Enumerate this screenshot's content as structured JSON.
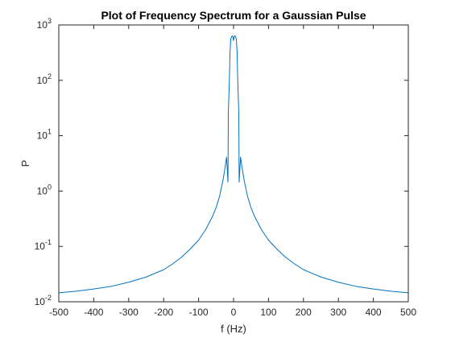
{
  "chart_data": {
    "type": "line",
    "title": "Plot of Frequency Spectrum for a Gaussian Pulse",
    "xlabel": "f (Hz)",
    "ylabel": "P",
    "xlim": [
      -500,
      500
    ],
    "ylim": [
      0.01,
      1000
    ],
    "y_scale": "log",
    "grid": false,
    "x_ticks": [
      -500,
      -400,
      -300,
      -200,
      -100,
      0,
      100,
      200,
      300,
      400,
      500
    ],
    "y_ticks": [
      {
        "value": 0.01,
        "mantissa": "10",
        "exponent": "-2"
      },
      {
        "value": 0.1,
        "mantissa": "10",
        "exponent": "-1"
      },
      {
        "value": 1,
        "mantissa": "10",
        "exponent": "0"
      },
      {
        "value": 10,
        "mantissa": "10",
        "exponent": "1"
      },
      {
        "value": 100,
        "mantissa": "10",
        "exponent": "2"
      },
      {
        "value": 1000,
        "mantissa": "10",
        "exponent": "3"
      }
    ],
    "series": [
      {
        "color": "#0072BD",
        "x": [
          -500,
          -450,
          -400,
          -350,
          -300,
          -250,
          -200,
          -175,
          -150,
          -125,
          -100,
          -80,
          -60,
          -50,
          -40,
          -30,
          -25,
          -20,
          -16,
          -15,
          -12,
          -10,
          -8,
          -6,
          -4,
          -2,
          0,
          2,
          4,
          6,
          8,
          10,
          12,
          15,
          16,
          20,
          25,
          30,
          40,
          50,
          60,
          80,
          100,
          125,
          150,
          175,
          200,
          250,
          300,
          350,
          400,
          450,
          500
        ],
        "y": [
          0.0145,
          0.0155,
          0.017,
          0.019,
          0.0225,
          0.028,
          0.038,
          0.048,
          0.063,
          0.088,
          0.13,
          0.2,
          0.35,
          0.5,
          0.8,
          1.6,
          2.5,
          4.1,
          1.45,
          25,
          100,
          330,
          560,
          600,
          640,
          620,
          520,
          620,
          640,
          600,
          560,
          330,
          100,
          25,
          1.45,
          4.1,
          2.5,
          1.6,
          0.8,
          0.5,
          0.35,
          0.2,
          0.13,
          0.088,
          0.063,
          0.048,
          0.038,
          0.028,
          0.0225,
          0.019,
          0.017,
          0.0155,
          0.0145
        ]
      }
    ]
  }
}
